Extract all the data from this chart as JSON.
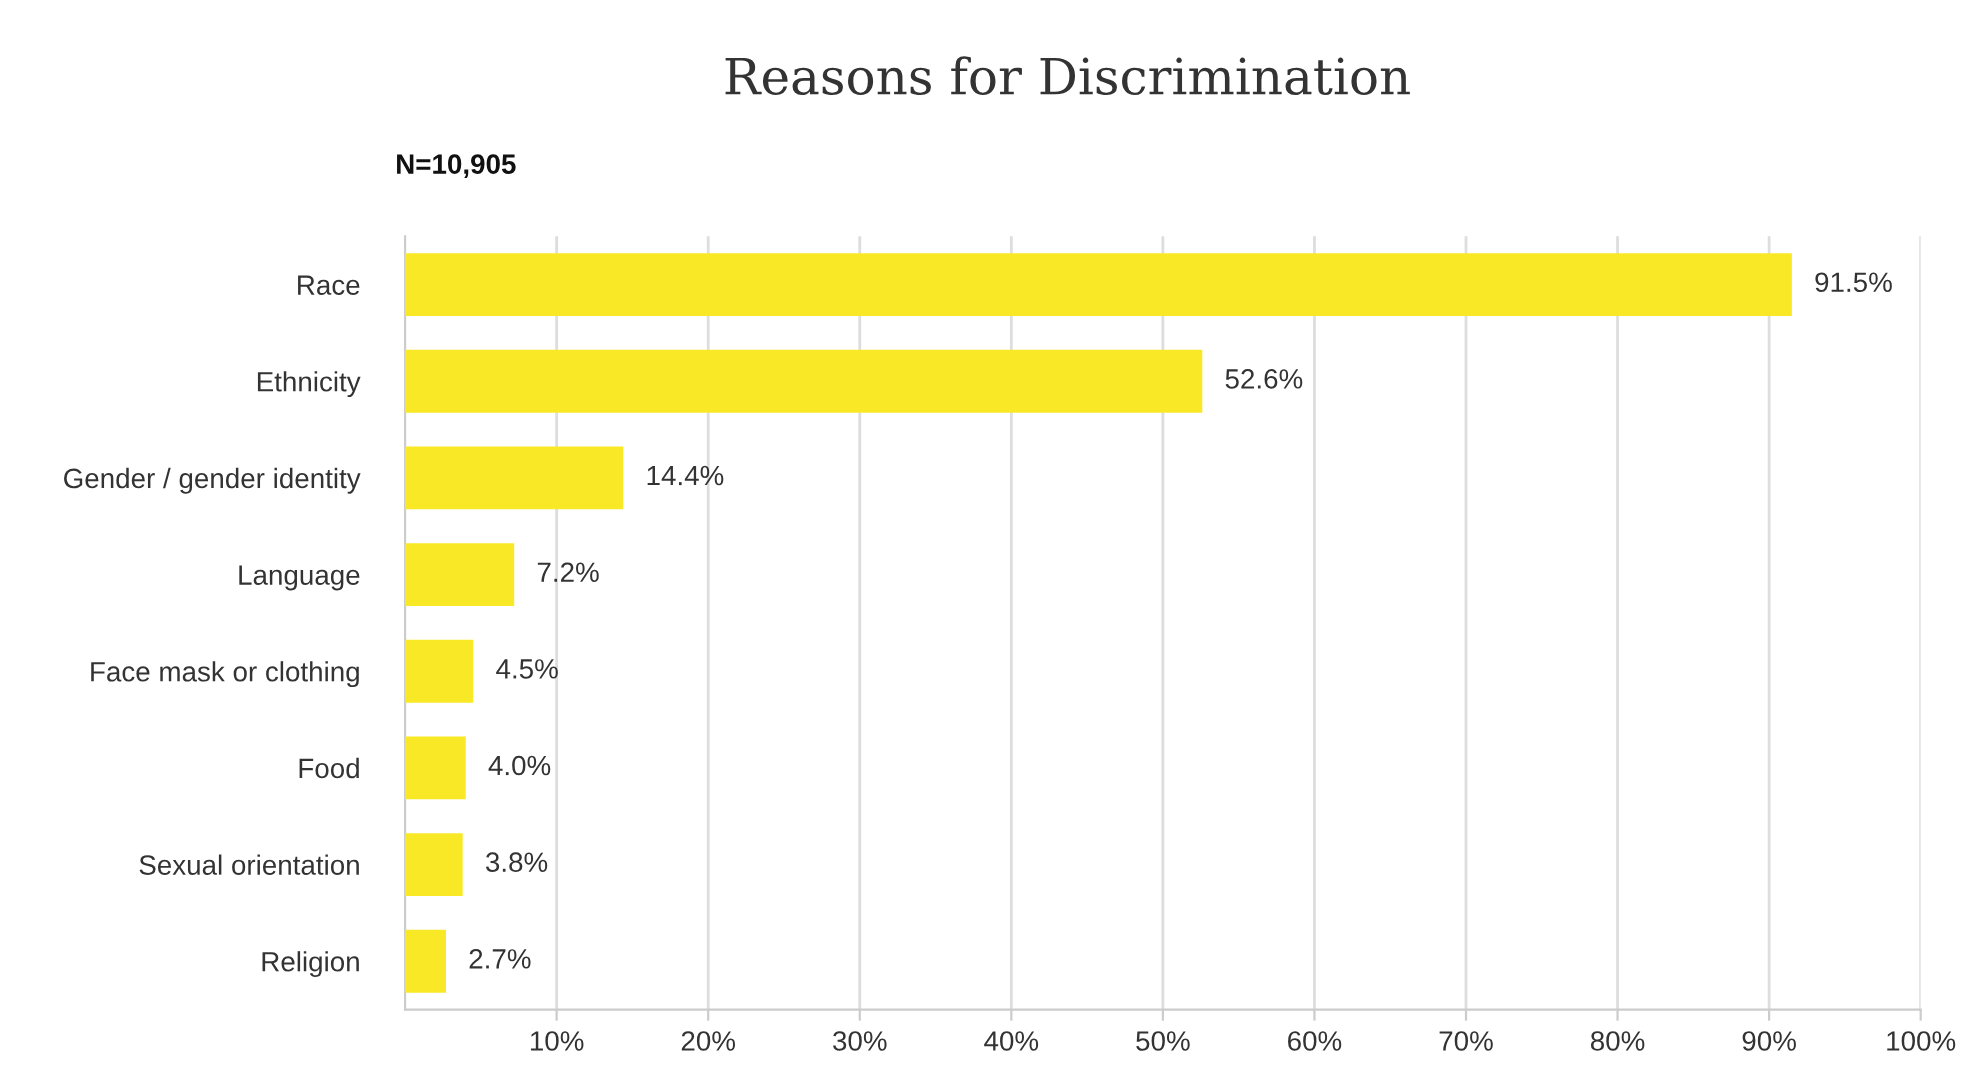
{
  "chart_data": {
    "type": "bar",
    "orientation": "horizontal",
    "title": "Reasons for Discrimination",
    "subtitle": "N=10,905",
    "categories": [
      "Race",
      "Ethnicity",
      "Gender / gender identity",
      "Language",
      "Face mask or clothing",
      "Food",
      "Sexual orientation",
      "Religion"
    ],
    "values": [
      91.5,
      52.6,
      14.4,
      7.2,
      4.5,
      4.0,
      3.8,
      2.7
    ],
    "value_labels": [
      "91.5%",
      "52.6%",
      "14.4%",
      "7.2%",
      "4.5%",
      "4.0%",
      "3.8%",
      "2.7%"
    ],
    "color": "#f9e825",
    "xlim": [
      0,
      100
    ],
    "xticks": [
      {
        "value": 10,
        "label": "10%"
      },
      {
        "value": 20,
        "label": "20%"
      },
      {
        "value": 30,
        "label": "30%"
      },
      {
        "value": 40,
        "label": "40%"
      },
      {
        "value": 50,
        "label": "50%"
      },
      {
        "value": 60,
        "label": "60%"
      },
      {
        "value": 70,
        "label": "70%"
      },
      {
        "value": 80,
        "label": "80%"
      },
      {
        "value": 90,
        "label": "90%"
      },
      {
        "value": 100,
        "label": "100%"
      }
    ],
    "grid": "x",
    "legend": false
  }
}
